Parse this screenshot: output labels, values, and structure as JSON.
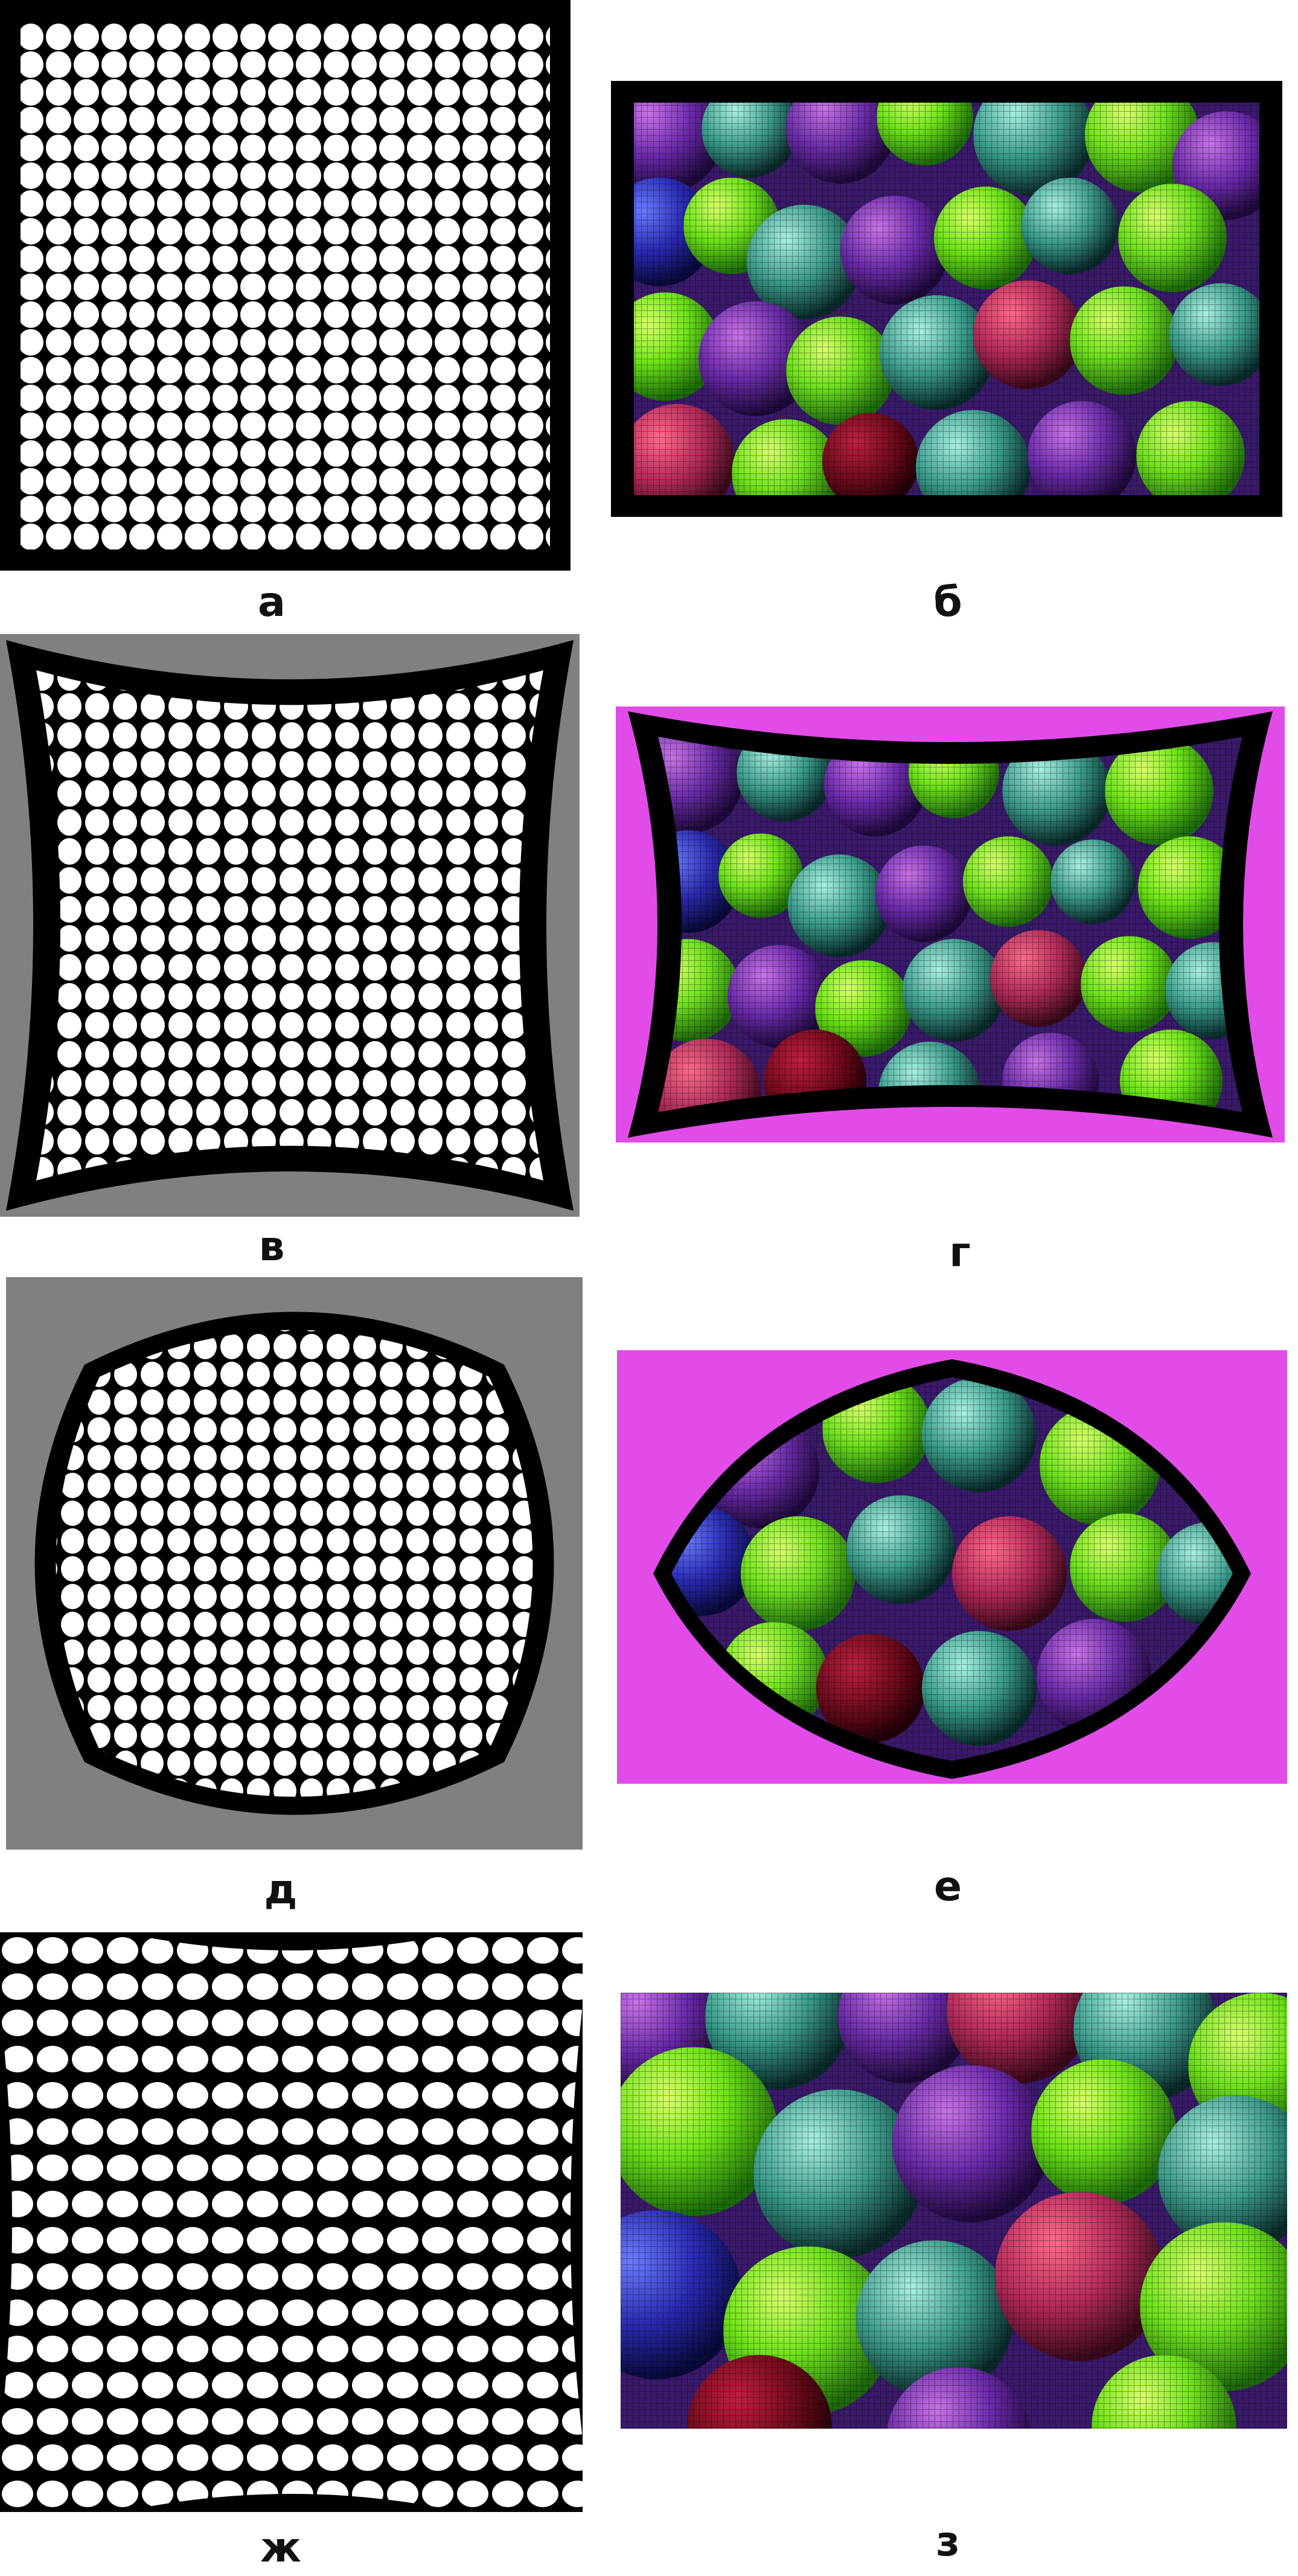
{
  "figure": {
    "labels": {
      "a": "а",
      "b": "б",
      "v": "в",
      "g": "г",
      "d": "д",
      "e": "е",
      "zh": "ж",
      "z": "з"
    }
  },
  "colors": {
    "frame": "#000000",
    "dot": "#ffffff",
    "gray_bg": "#808080",
    "magenta_bg": "#e14be8",
    "ball_dark": "#3a1a6a"
  },
  "panels": [
    {
      "id": "a",
      "content": "white-dots-grid",
      "distortion": "none",
      "background": "black"
    },
    {
      "id": "b",
      "content": "colored-balls",
      "distortion": "none",
      "background": "black"
    },
    {
      "id": "v",
      "content": "white-dots-grid",
      "distortion": "pincushion",
      "background": "gray"
    },
    {
      "id": "g",
      "content": "colored-balls",
      "distortion": "pincushion",
      "background": "magenta"
    },
    {
      "id": "d",
      "content": "white-dots-grid",
      "distortion": "barrel",
      "background": "gray"
    },
    {
      "id": "e",
      "content": "colored-balls",
      "distortion": "barrel",
      "background": "magenta"
    },
    {
      "id": "zh",
      "content": "white-dots-grid",
      "distortion": "pincushion-cropped",
      "background": "white"
    },
    {
      "id": "z",
      "content": "colored-balls",
      "distortion": "cropped",
      "background": "white"
    }
  ]
}
